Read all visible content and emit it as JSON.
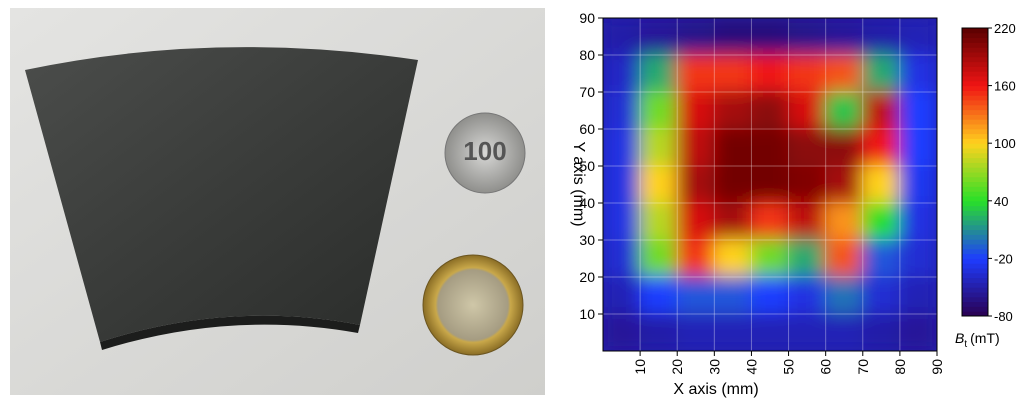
{
  "photo": {
    "coin_text": "100"
  },
  "chart_data": {
    "type": "heatmap",
    "x_label": "X axis (mm)",
    "y_label": "Y axis (mm)",
    "xlim": [
      0,
      90
    ],
    "ylim": [
      0,
      90
    ],
    "xticks": [
      10,
      20,
      30,
      40,
      50,
      60,
      70,
      80,
      90
    ],
    "yticks": [
      10,
      20,
      30,
      40,
      50,
      60,
      70,
      80,
      90
    ],
    "x": [
      5,
      15,
      25,
      35,
      45,
      55,
      65,
      75,
      85
    ],
    "y": [
      85,
      75,
      65,
      55,
      45,
      35,
      25,
      15,
      5
    ],
    "z": [
      [
        -50,
        -55,
        -60,
        -65,
        -65,
        -60,
        -55,
        -50,
        -45
      ],
      [
        -40,
        20,
        150,
        150,
        160,
        150,
        140,
        20,
        -30
      ],
      [
        -35,
        60,
        170,
        190,
        200,
        170,
        30,
        180,
        -20
      ],
      [
        -30,
        80,
        180,
        210,
        210,
        200,
        200,
        160,
        -20
      ],
      [
        -30,
        100,
        190,
        210,
        210,
        205,
        190,
        100,
        -25
      ],
      [
        -30,
        80,
        170,
        190,
        150,
        180,
        120,
        40,
        -30
      ],
      [
        -35,
        60,
        150,
        100,
        60,
        20,
        140,
        -10,
        -35
      ],
      [
        -45,
        -20,
        -10,
        -10,
        -20,
        -30,
        0,
        -35,
        -45
      ],
      [
        -55,
        -50,
        -45,
        -45,
        -45,
        -45,
        -45,
        -50,
        -55
      ]
    ],
    "colorbar": {
      "label": "B",
      "label_sub": "t",
      "label_unit": "(mT)",
      "lim": [
        -80,
        220
      ],
      "ticks": [
        220,
        160,
        100,
        40,
        -20,
        -80
      ],
      "colors": [
        "#2a0050",
        "#1e3cff",
        "#28e028",
        "#ffd21e",
        "#f01414",
        "#5a0000"
      ]
    }
  }
}
